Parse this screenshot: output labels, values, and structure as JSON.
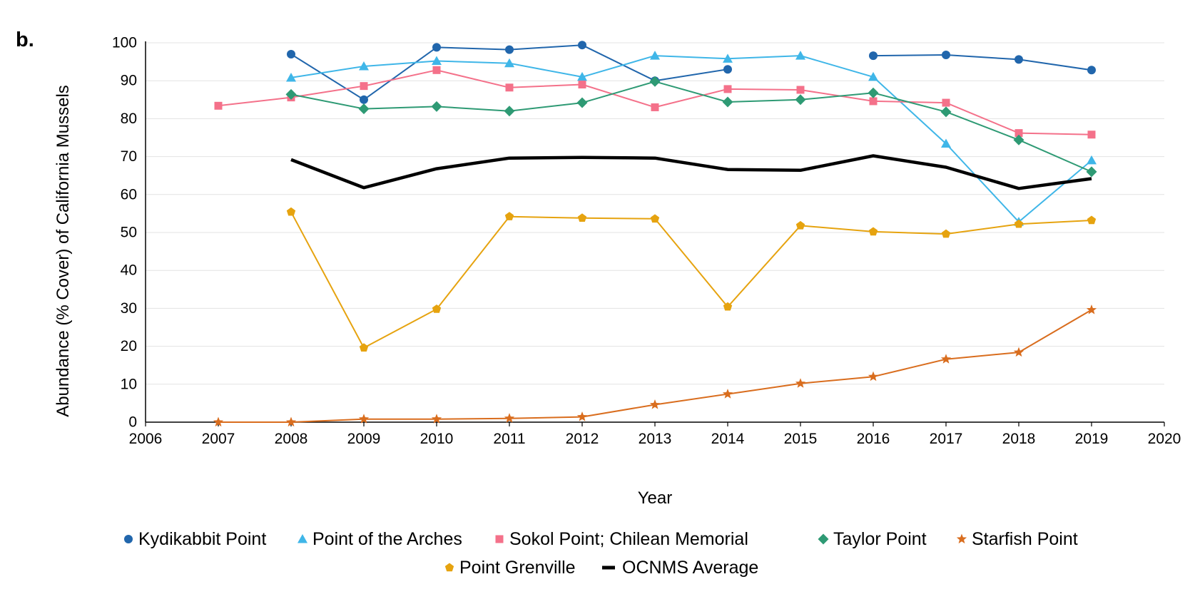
{
  "panel_label": "b.",
  "chart_data": {
    "type": "line",
    "title": "",
    "xlabel": "Year",
    "ylabel": "Abundance (% Cover) of California Mussels",
    "xlim": [
      2006,
      2020
    ],
    "ylim": [
      0,
      100
    ],
    "xticks": [
      2006,
      2007,
      2008,
      2009,
      2010,
      2011,
      2012,
      2013,
      2014,
      2015,
      2016,
      2017,
      2018,
      2019,
      2020
    ],
    "yticks": [
      0,
      10,
      20,
      30,
      40,
      50,
      60,
      70,
      80,
      90,
      100
    ],
    "grid": "horizontal",
    "legend_position": "bottom",
    "series": [
      {
        "name": "Kydikabbit Point",
        "color": "#2166ac",
        "marker": "circle",
        "segments": [
          [
            [
              2008,
              97
            ],
            [
              2009,
              85
            ],
            [
              2010,
              98.8
            ],
            [
              2011,
              98.2
            ],
            [
              2012,
              99.4
            ],
            [
              2013,
              90
            ],
            [
              2014,
              93
            ]
          ],
          [
            [
              2016,
              96.6
            ],
            [
              2017,
              96.8
            ],
            [
              2018,
              95.6
            ],
            [
              2019,
              92.8
            ]
          ]
        ]
      },
      {
        "name": "Point of the Arches",
        "color": "#3fb6e8",
        "marker": "triangle",
        "segments": [
          [
            [
              2008,
              90.8
            ],
            [
              2009,
              93.8
            ],
            [
              2010,
              95.2
            ],
            [
              2011,
              94.6
            ],
            [
              2012,
              91
            ],
            [
              2013,
              96.6
            ],
            [
              2014,
              95.8
            ],
            [
              2015,
              96.6
            ],
            [
              2016,
              91
            ],
            [
              2017,
              73.4
            ],
            [
              2018,
              52.8
            ],
            [
              2019,
              69
            ]
          ]
        ]
      },
      {
        "name": "Sokol Point; Chilean Memorial",
        "color": "#f4718a",
        "marker": "square",
        "segments": [
          [
            [
              2007,
              83.4
            ],
            [
              2008,
              85.6
            ],
            [
              2009,
              88.6
            ],
            [
              2010,
              92.8
            ],
            [
              2011,
              88.2
            ],
            [
              2012,
              89
            ],
            [
              2013,
              83
            ],
            [
              2014,
              87.8
            ],
            [
              2015,
              87.6
            ],
            [
              2016,
              84.6
            ],
            [
              2017,
              84.2
            ],
            [
              2018,
              76.2
            ],
            [
              2019,
              75.8
            ]
          ]
        ]
      },
      {
        "name": "Taylor Point",
        "color": "#2e9a74",
        "marker": "diamond",
        "segments": [
          [
            [
              2008,
              86.4
            ],
            [
              2009,
              82.6
            ],
            [
              2010,
              83.2
            ],
            [
              2011,
              82
            ],
            [
              2012,
              84.2
            ],
            [
              2013,
              89.8
            ],
            [
              2014,
              84.4
            ],
            [
              2015,
              85
            ],
            [
              2016,
              86.8
            ],
            [
              2017,
              81.8
            ],
            [
              2018,
              74.4
            ],
            [
              2019,
              66
            ]
          ]
        ]
      },
      {
        "name": "Starfish Point",
        "color": "#d96d1e",
        "marker": "star",
        "segments": [
          [
            [
              2007,
              0
            ],
            [
              2008,
              0
            ],
            [
              2009,
              0.8
            ],
            [
              2010,
              0.8
            ],
            [
              2011,
              1
            ],
            [
              2012,
              1.4
            ],
            [
              2013,
              4.6
            ],
            [
              2014,
              7.4
            ],
            [
              2015,
              10.2
            ],
            [
              2016,
              12
            ],
            [
              2017,
              16.6
            ],
            [
              2018,
              18.4
            ],
            [
              2019,
              29.6
            ]
          ]
        ]
      },
      {
        "name": "Point Grenville",
        "color": "#e6a30f",
        "marker": "pentagon",
        "segments": [
          [
            [
              2008,
              55.4
            ],
            [
              2009,
              19.6
            ],
            [
              2010,
              29.8
            ],
            [
              2011,
              54.2
            ],
            [
              2012,
              53.8
            ],
            [
              2013,
              53.6
            ],
            [
              2014,
              30.4
            ],
            [
              2015,
              51.8
            ],
            [
              2016,
              50.2
            ],
            [
              2017,
              49.6
            ],
            [
              2018,
              52.2
            ],
            [
              2019,
              53.2
            ]
          ]
        ]
      },
      {
        "name": "OCNMS Average",
        "color": "#000000",
        "marker": "none",
        "segments": [
          [
            [
              2008,
              69.2
            ],
            [
              2009,
              61.8
            ],
            [
              2010,
              66.8
            ],
            [
              2011,
              69.6
            ],
            [
              2012,
              69.8
            ],
            [
              2013,
              69.6
            ],
            [
              2014,
              66.6
            ],
            [
              2015,
              66.4
            ],
            [
              2016,
              70.2
            ],
            [
              2017,
              67.2
            ],
            [
              2018,
              61.6
            ],
            [
              2019,
              64.2
            ]
          ]
        ]
      }
    ]
  }
}
